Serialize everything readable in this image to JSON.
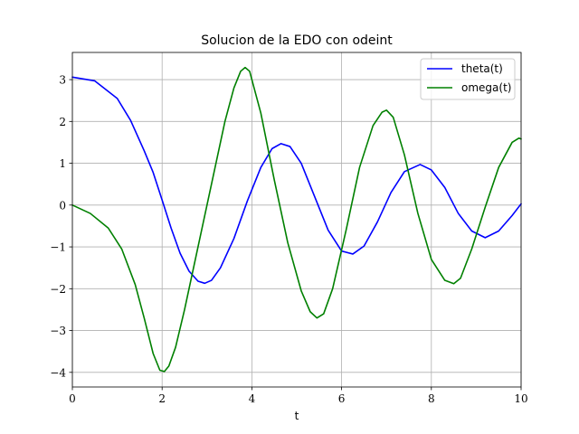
{
  "chart_data": {
    "type": "line",
    "title": "Solucion de la EDO con odeint",
    "xlabel": "t",
    "ylabel": "",
    "xlim": [
      0,
      10
    ],
    "ylim": [
      -4.35,
      3.65
    ],
    "xticks": [
      0,
      2,
      4,
      6,
      8,
      10
    ],
    "xtick_labels": [
      "0",
      "2",
      "4",
      "6",
      "8",
      "10"
    ],
    "yticks": [
      -4,
      -3,
      -2,
      -1,
      0,
      1,
      2,
      3
    ],
    "ytick_labels": [
      "−4",
      "−3",
      "−2",
      "−1",
      "0",
      "1",
      "2",
      "3"
    ],
    "grid": true,
    "legend_position": "top-right",
    "series": [
      {
        "name": "theta(t)",
        "color": "#0000ff",
        "x": [
          0,
          0.5,
          1.0,
          1.3,
          1.6,
          1.8,
          2.0,
          2.2,
          2.4,
          2.6,
          2.8,
          2.95,
          3.1,
          3.3,
          3.6,
          3.9,
          4.2,
          4.45,
          4.65,
          4.85,
          5.1,
          5.4,
          5.7,
          6.0,
          6.25,
          6.5,
          6.8,
          7.1,
          7.4,
          7.75,
          8.0,
          8.3,
          8.6,
          8.9,
          9.2,
          9.5,
          9.8,
          10.0
        ],
        "y": [
          3.06,
          2.97,
          2.55,
          2.02,
          1.3,
          0.78,
          0.12,
          -0.55,
          -1.15,
          -1.58,
          -1.82,
          -1.87,
          -1.8,
          -1.5,
          -0.8,
          0.1,
          0.9,
          1.35,
          1.47,
          1.4,
          1.0,
          0.2,
          -0.6,
          -1.1,
          -1.17,
          -0.98,
          -0.4,
          0.3,
          0.8,
          0.97,
          0.84,
          0.42,
          -0.2,
          -0.62,
          -0.78,
          -0.62,
          -0.25,
          0.03
        ]
      },
      {
        "name": "omega(t)",
        "color": "#008000",
        "x": [
          0,
          0.4,
          0.8,
          1.1,
          1.4,
          1.6,
          1.8,
          1.95,
          2.05,
          2.15,
          2.3,
          2.5,
          2.8,
          3.1,
          3.4,
          3.6,
          3.75,
          3.85,
          3.95,
          4.2,
          4.5,
          4.8,
          5.1,
          5.3,
          5.45,
          5.6,
          5.8,
          6.1,
          6.4,
          6.7,
          6.9,
          7.0,
          7.15,
          7.4,
          7.7,
          8.0,
          8.3,
          8.5,
          8.65,
          8.9,
          9.2,
          9.5,
          9.8,
          9.95,
          10.0
        ],
        "y": [
          0.0,
          -0.2,
          -0.55,
          -1.05,
          -1.9,
          -2.7,
          -3.55,
          -3.95,
          -3.98,
          -3.85,
          -3.4,
          -2.5,
          -1.0,
          0.5,
          2.0,
          2.8,
          3.2,
          3.29,
          3.2,
          2.2,
          0.6,
          -0.9,
          -2.05,
          -2.55,
          -2.7,
          -2.6,
          -2.0,
          -0.6,
          0.9,
          1.9,
          2.22,
          2.27,
          2.1,
          1.2,
          -0.2,
          -1.3,
          -1.8,
          -1.88,
          -1.75,
          -1.05,
          -0.05,
          0.9,
          1.5,
          1.6,
          1.58
        ]
      }
    ]
  }
}
